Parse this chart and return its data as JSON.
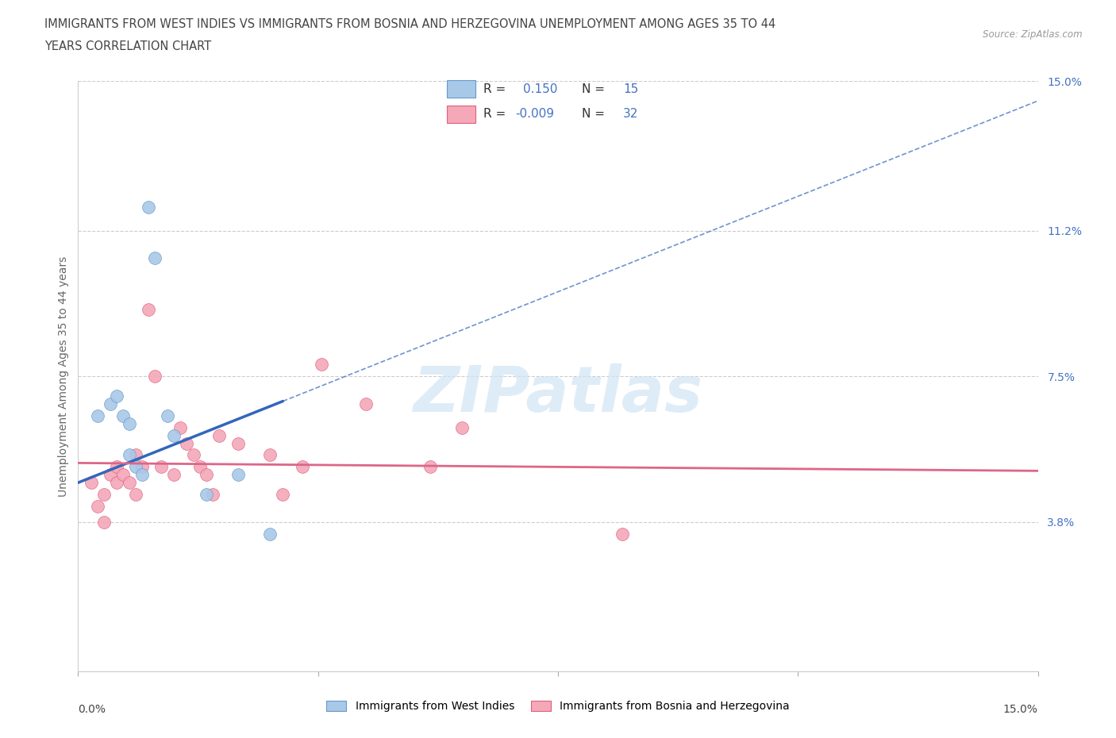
{
  "title_line1": "IMMIGRANTS FROM WEST INDIES VS IMMIGRANTS FROM BOSNIA AND HERZEGOVINA UNEMPLOYMENT AMONG AGES 35 TO 44",
  "title_line2": "YEARS CORRELATION CHART",
  "source_text": "Source: ZipAtlas.com",
  "ylabel": "Unemployment Among Ages 35 to 44 years",
  "xmin": 0.0,
  "xmax": 15.0,
  "ymin": 0.0,
  "ymax": 15.0,
  "yticks": [
    0.0,
    3.8,
    7.5,
    11.2,
    15.0
  ],
  "ytick_labels": [
    "",
    "3.8%",
    "7.5%",
    "11.2%",
    "15.0%"
  ],
  "legend1_label": "Immigrants from West Indies",
  "legend2_label": "Immigrants from Bosnia and Herzegovina",
  "R1": 0.15,
  "N1": 15,
  "R2": -0.009,
  "N2": 32,
  "color_blue": "#a8c8e8",
  "color_blue_edge": "#6699cc",
  "color_pink": "#f4a8b8",
  "color_pink_edge": "#e06080",
  "color_trend1": "#3366bb",
  "color_trend2": "#dd6688",
  "watermark_color": "#d0e4f4",
  "west_indies_x": [
    0.3,
    0.5,
    0.6,
    0.7,
    0.8,
    0.8,
    0.9,
    1.0,
    1.1,
    1.2,
    1.4,
    1.5,
    2.0,
    2.5,
    3.0
  ],
  "west_indies_y": [
    6.5,
    6.8,
    7.0,
    6.5,
    6.3,
    5.5,
    5.2,
    5.0,
    11.8,
    10.5,
    6.5,
    6.0,
    4.5,
    5.0,
    3.5
  ],
  "bosnia_x": [
    0.2,
    0.3,
    0.4,
    0.4,
    0.5,
    0.6,
    0.6,
    0.7,
    0.8,
    0.9,
    0.9,
    1.0,
    1.1,
    1.2,
    1.3,
    1.5,
    1.6,
    1.7,
    1.8,
    1.9,
    2.0,
    2.1,
    2.2,
    2.5,
    3.0,
    3.5,
    3.8,
    4.5,
    5.5,
    6.0,
    8.5,
    3.2
  ],
  "bosnia_y": [
    4.8,
    4.2,
    3.8,
    4.5,
    5.0,
    4.8,
    5.2,
    5.0,
    4.8,
    4.5,
    5.5,
    5.2,
    9.2,
    7.5,
    5.2,
    5.0,
    6.2,
    5.8,
    5.5,
    5.2,
    5.0,
    4.5,
    6.0,
    5.8,
    5.5,
    5.2,
    7.8,
    6.8,
    5.2,
    6.2,
    3.5,
    4.5
  ],
  "trend1_x_start": 0.0,
  "trend1_x_solid_end": 3.2,
  "trend1_x_end": 15.0,
  "trend1_y_start": 4.8,
  "trend1_y_solid_end": 6.8,
  "trend1_y_end": 14.5,
  "trend2_x_start": 0.0,
  "trend2_x_end": 15.0,
  "trend2_y_start": 5.3,
  "trend2_y_end": 5.1
}
